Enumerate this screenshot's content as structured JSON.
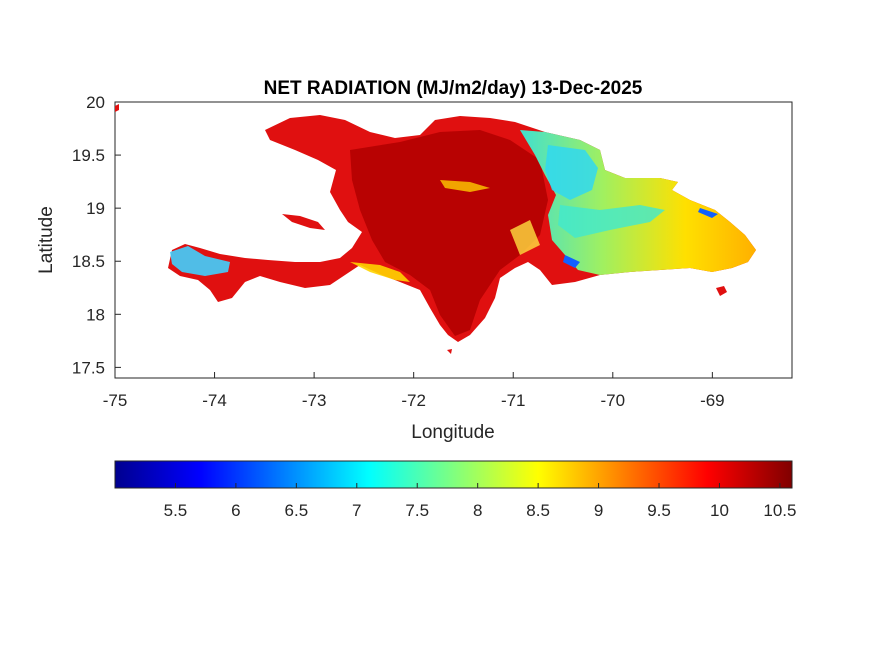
{
  "title": "NET RADIATION (MJ/m2/day) 13-Dec-2025",
  "map": {
    "xlabel": "Longitude",
    "ylabel": "Latitude",
    "xlim": [
      -75,
      -68.2
    ],
    "ylim": [
      17.4,
      20
    ],
    "x_ticks": [
      "-75",
      "-74",
      "-73",
      "-72",
      "-71",
      "-70",
      "-69"
    ],
    "x_tick_values": [
      -75,
      -74,
      -73,
      -72,
      -71,
      -70,
      -69
    ],
    "y_ticks": [
      "20",
      "19.5",
      "19",
      "18.5",
      "18",
      "17.5"
    ],
    "y_tick_values": [
      20,
      19.5,
      19,
      18.5,
      18,
      17.5
    ]
  },
  "colorbar": {
    "min": 5.0,
    "max": 10.6,
    "tick_labels": [
      "5.5",
      "6",
      "6.5",
      "7",
      "7.5",
      "8",
      "8.5",
      "9",
      "9.5",
      "10",
      "10.5"
    ],
    "tick_values": [
      5.5,
      6,
      6.5,
      7,
      7.5,
      8,
      8.5,
      9,
      9.5,
      10,
      10.5
    ],
    "colormap": "jet",
    "colors": [
      "#00008f",
      "#0000ff",
      "#00ffff",
      "#ffff00",
      "#ff0000",
      "#800000"
    ]
  },
  "regions": {
    "haiti_dominant_color": "#e00000",
    "east_dominant_color": "#ffd400",
    "low_value_color": "#00b0ff"
  }
}
